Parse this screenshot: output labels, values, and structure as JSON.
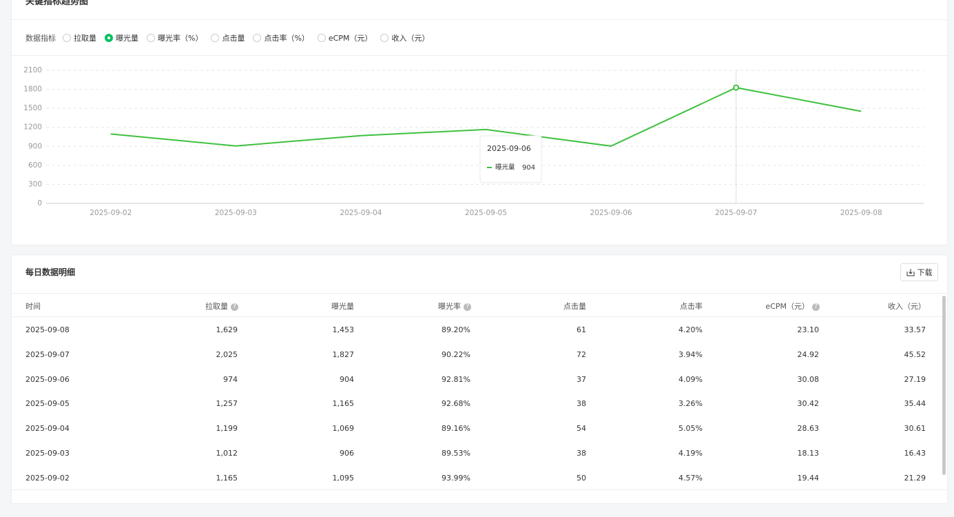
{
  "header": {
    "title": "关键指标趋势图"
  },
  "metric_selector": {
    "label": "数据指标",
    "options": [
      "拉取量",
      "曝光量",
      "曝光率（%）",
      "点击量",
      "点击率（%）",
      "eCPM（元）",
      "收入（元）"
    ],
    "selected": 1
  },
  "chart_data": {
    "type": "line",
    "categories": [
      "2025-09-02",
      "2025-09-03",
      "2025-09-04",
      "2025-09-05",
      "2025-09-06",
      "2025-09-07",
      "2025-09-08"
    ],
    "series": [
      {
        "name": "曝光量",
        "color": "#3ec03e",
        "values": [
          1095,
          906,
          1069,
          1165,
          904,
          1827,
          1453
        ]
      }
    ],
    "ylim": [
      0,
      2100
    ],
    "yticks": [
      0,
      300,
      600,
      900,
      1200,
      1500,
      1800,
      2100
    ],
    "grid": true
  },
  "table": {
    "title": "每日数据明细",
    "download": "下载",
    "columns": [
      {
        "label": "时间",
        "help": false
      },
      {
        "label": "拉取量",
        "help": true
      },
      {
        "label": "曝光量",
        "help": false
      },
      {
        "label": "曝光率",
        "help": true
      },
      {
        "label": "点击量",
        "help": false
      },
      {
        "label": "点击率",
        "help": false
      },
      {
        "label": "eCPM（元）",
        "help": true
      },
      {
        "label": "收入（元）",
        "help": false
      }
    ],
    "rows": [
      [
        "2025-09-08",
        "1,629",
        "1,453",
        "89.20%",
        "61",
        "4.20%",
        "23.10",
        "33.57"
      ],
      [
        "2025-09-07",
        "2,025",
        "1,827",
        "90.22%",
        "72",
        "3.94%",
        "24.92",
        "45.52"
      ],
      [
        "2025-09-06",
        "974",
        "904",
        "92.81%",
        "37",
        "4.09%",
        "30.08",
        "27.19"
      ],
      [
        "2025-09-05",
        "1,257",
        "1,165",
        "92.68%",
        "38",
        "3.26%",
        "30.42",
        "35.44"
      ],
      [
        "2025-09-04",
        "1,199",
        "1,069",
        "89.16%",
        "54",
        "5.05%",
        "28.63",
        "30.61"
      ],
      [
        "2025-09-03",
        "1,012",
        "906",
        "89.53%",
        "38",
        "4.19%",
        "18.13",
        "16.43"
      ],
      [
        "2025-09-02",
        "1,165",
        "1,095",
        "93.99%",
        "50",
        "4.57%",
        "19.44",
        "21.29"
      ]
    ]
  }
}
